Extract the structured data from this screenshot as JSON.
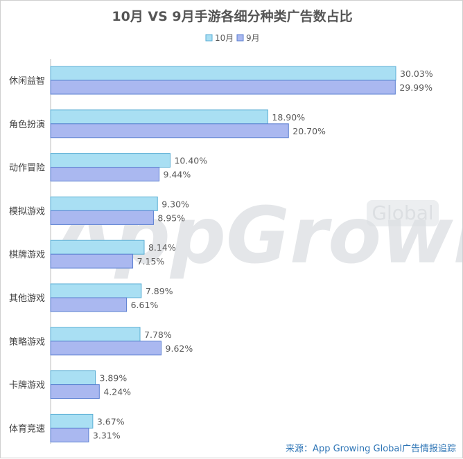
{
  "chart_data": {
    "type": "bar",
    "orientation": "horizontal",
    "title": "10月 VS 9月手游各细分种类广告数占比",
    "categories": [
      "休闲益智",
      "角色扮演",
      "动作冒险",
      "模拟游戏",
      "棋牌游戏",
      "其他游戏",
      "策略游戏",
      "卡牌游戏",
      "体育竞速"
    ],
    "series": [
      {
        "name": "10月",
        "color": "#a9dff3",
        "stroke": "#5aaed4",
        "values": [
          30.03,
          18.9,
          10.4,
          9.3,
          8.14,
          7.89,
          7.78,
          3.89,
          3.67
        ],
        "labels": [
          "30.03%",
          "18.90%",
          "10.40%",
          "9.30%",
          "8.14%",
          "7.89%",
          "7.78%",
          "3.89%",
          "3.67%"
        ]
      },
      {
        "name": "9月",
        "color": "#aab8f0",
        "stroke": "#5b7fd1",
        "values": [
          29.99,
          20.7,
          9.44,
          8.95,
          7.15,
          6.61,
          9.62,
          4.24,
          3.31
        ],
        "labels": [
          "29.99%",
          "20.70%",
          "9.44%",
          "8.95%",
          "7.15%",
          "6.61%",
          "9.62%",
          "4.24%",
          "3.31%"
        ]
      }
    ],
    "legend_position": "top-center",
    "xlim": [
      0,
      31
    ],
    "grid": false
  },
  "watermark": {
    "main": "AppGrowing",
    "badge": "Global"
  },
  "source": "来源：App Growing Global广告情报追踪"
}
